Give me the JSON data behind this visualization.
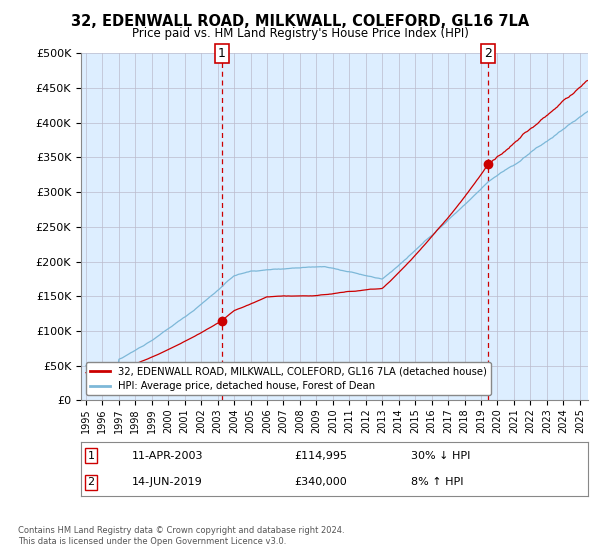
{
  "title": "32, EDENWALL ROAD, MILKWALL, COLEFORD, GL16 7LA",
  "subtitle": "Price paid vs. HM Land Registry's House Price Index (HPI)",
  "legend_line1": "32, EDENWALL ROAD, MILKWALL, COLEFORD, GL16 7LA (detached house)",
  "legend_line2": "HPI: Average price, detached house, Forest of Dean",
  "annotation1_date": "11-APR-2003",
  "annotation1_price": "£114,995",
  "annotation1_hpi": "30% ↓ HPI",
  "annotation2_date": "14-JUN-2019",
  "annotation2_price": "£340,000",
  "annotation2_hpi": "8% ↑ HPI",
  "footer": "Contains HM Land Registry data © Crown copyright and database right 2024.\nThis data is licensed under the Open Government Licence v3.0.",
  "hpi_color": "#7db8d8",
  "price_color": "#cc0000",
  "bg_color": "#ddeeff",
  "annotation_color": "#cc0000",
  "grid_color": "#bbbbcc",
  "sale1_x": 2003.27,
  "sale1_y": 114995,
  "sale2_x": 2019.45,
  "sale2_y": 340000,
  "ylim": [
    0,
    500000
  ],
  "xlim_start": 1994.7,
  "xlim_end": 2025.5
}
